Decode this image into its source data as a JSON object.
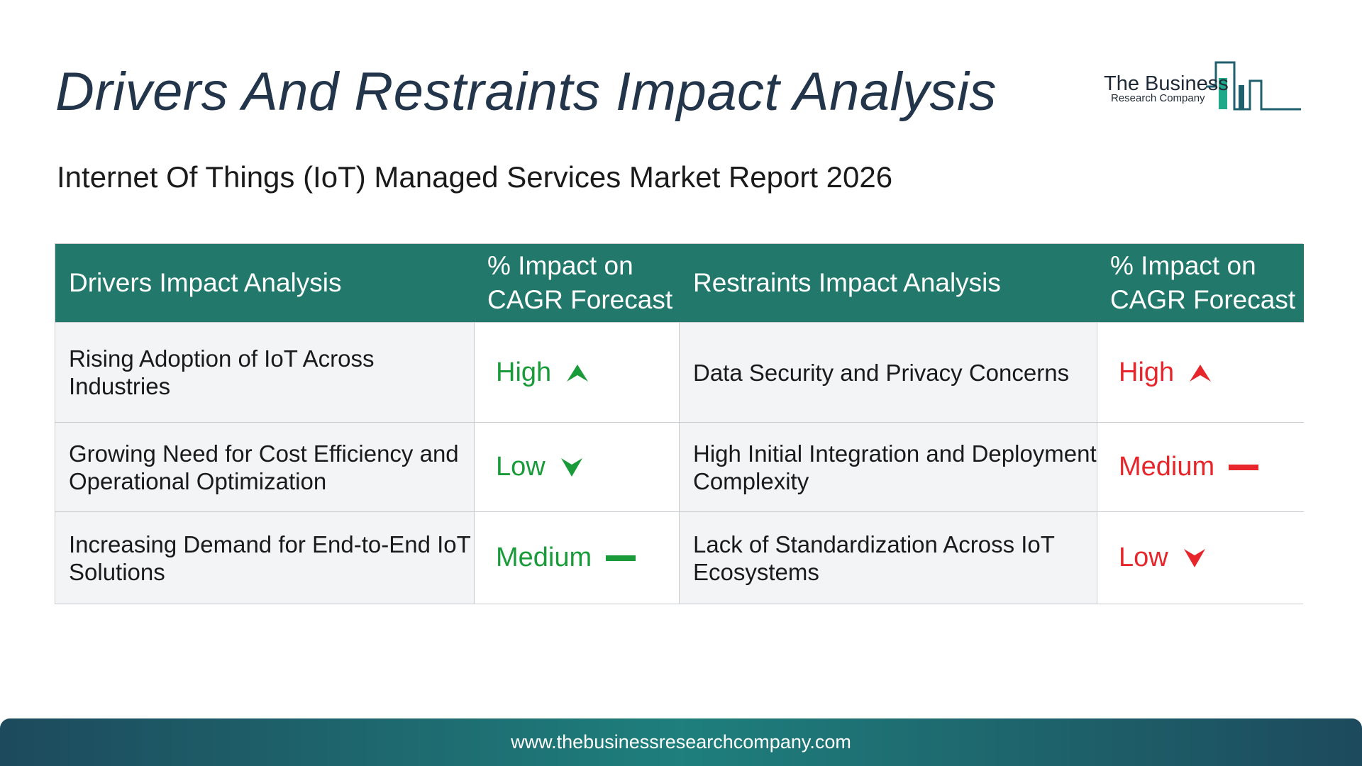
{
  "title": "Drivers And Restraints Impact Analysis",
  "subtitle": "Internet Of Things (IoT) Managed Services Market Report 2026",
  "logo": {
    "name": "The Business",
    "sub": "Research Company"
  },
  "table": {
    "headers": [
      "Drivers Impact Analysis",
      "% Impact on CAGR Forecast",
      "Restraints Impact Analysis",
      "% Impact on CAGR Forecast"
    ],
    "rows": [
      {
        "driver": "Rising Adoption of IoT Across Industries",
        "driver_impact": "High",
        "restraint": "Data Security and Privacy Concerns",
        "restraint_impact": "High"
      },
      {
        "driver": "Growing Need for Cost Efficiency and Operational Optimization",
        "driver_impact": "Low",
        "restraint": "High Initial Integration and Deployment Complexity",
        "restraint_impact": "Medium"
      },
      {
        "driver": "Increasing Demand for End-to-End IoT Solutions",
        "driver_impact": "Medium",
        "restraint": "Lack of Standardization Across IoT Ecosystems",
        "restraint_impact": "Low"
      }
    ]
  },
  "colors": {
    "header": "#22786a",
    "driver": "#1a9b3a",
    "restraint": "#e6262b",
    "title": "#23354a"
  },
  "icons": {
    "high": "arrow-up-icon",
    "low": "arrow-down-icon",
    "medium": "dash-icon"
  },
  "footer": {
    "url": "www.thebusinessresearchcompany.com"
  }
}
